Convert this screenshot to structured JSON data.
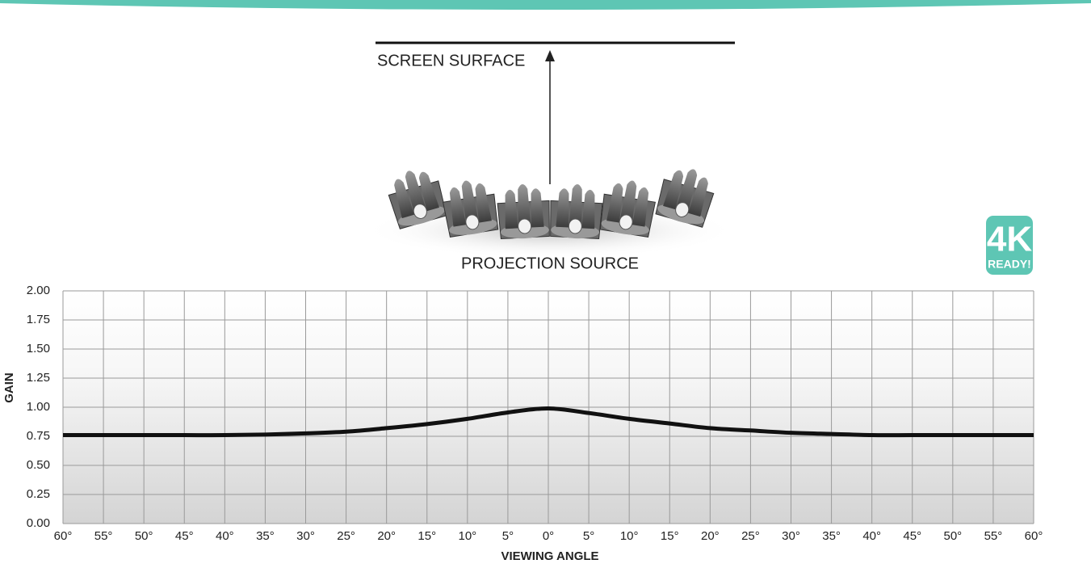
{
  "chart_data": {
    "type": "line",
    "screen_label": "SCREEN SURFACE",
    "source_label": "PROJECTION SOURCE",
    "badge": {
      "main": "4K",
      "sub": "READY!",
      "color": "#5ec6b4"
    },
    "x_label": "VIEWING ANGLE",
    "y_label": "GAIN",
    "x": [
      -60,
      -55,
      -50,
      -45,
      -40,
      -35,
      -30,
      -25,
      -20,
      -15,
      -10,
      -5,
      0,
      5,
      10,
      15,
      20,
      25,
      30,
      35,
      40,
      45,
      50,
      55,
      60
    ],
    "series": [
      {
        "color": "#111111",
        "values": [
          0.76,
          0.76,
          0.76,
          0.76,
          0.76,
          0.765,
          0.775,
          0.79,
          0.82,
          0.855,
          0.9,
          0.955,
          0.99,
          0.95,
          0.9,
          0.86,
          0.82,
          0.8,
          0.78,
          0.77,
          0.76,
          0.76,
          0.76,
          0.76,
          0.76
        ]
      }
    ],
    "xlim": [
      -60,
      60
    ],
    "xticks": [
      {
        "value": -60,
        "label": "60°"
      },
      {
        "value": -55,
        "label": "55°"
      },
      {
        "value": -50,
        "label": "50°"
      },
      {
        "value": -45,
        "label": "45°"
      },
      {
        "value": -40,
        "label": "40°"
      },
      {
        "value": -35,
        "label": "35°"
      },
      {
        "value": -30,
        "label": "30°"
      },
      {
        "value": -25,
        "label": "25°"
      },
      {
        "value": -20,
        "label": "20°"
      },
      {
        "value": -15,
        "label": "15°"
      },
      {
        "value": -10,
        "label": "10°"
      },
      {
        "value": -5,
        "label": "5°"
      },
      {
        "value": 0,
        "label": "0°"
      },
      {
        "value": 5,
        "label": "5°"
      },
      {
        "value": 10,
        "label": "10°"
      },
      {
        "value": 15,
        "label": "15°"
      },
      {
        "value": 20,
        "label": "20°"
      },
      {
        "value": 25,
        "label": "25°"
      },
      {
        "value": 30,
        "label": "30°"
      },
      {
        "value": 35,
        "label": "35°"
      },
      {
        "value": 40,
        "label": "40°"
      },
      {
        "value": 45,
        "label": "45°"
      },
      {
        "value": 50,
        "label": "50°"
      },
      {
        "value": 55,
        "label": "55°"
      },
      {
        "value": 60,
        "label": "60°"
      }
    ],
    "ylim": [
      0,
      2
    ],
    "yticks": [
      {
        "value": 0,
        "label": "0.00"
      },
      {
        "value": 0.25,
        "label": "0.25"
      },
      {
        "value": 0.5,
        "label": "0.50"
      },
      {
        "value": 0.75,
        "label": "0.75"
      },
      {
        "value": 1,
        "label": "1.00"
      },
      {
        "value": 1.25,
        "label": "1.25"
      },
      {
        "value": 1.5,
        "label": "1.50"
      },
      {
        "value": 1.75,
        "label": "1.75"
      },
      {
        "value": 2,
        "label": "2.00"
      }
    ],
    "grid": true
  }
}
